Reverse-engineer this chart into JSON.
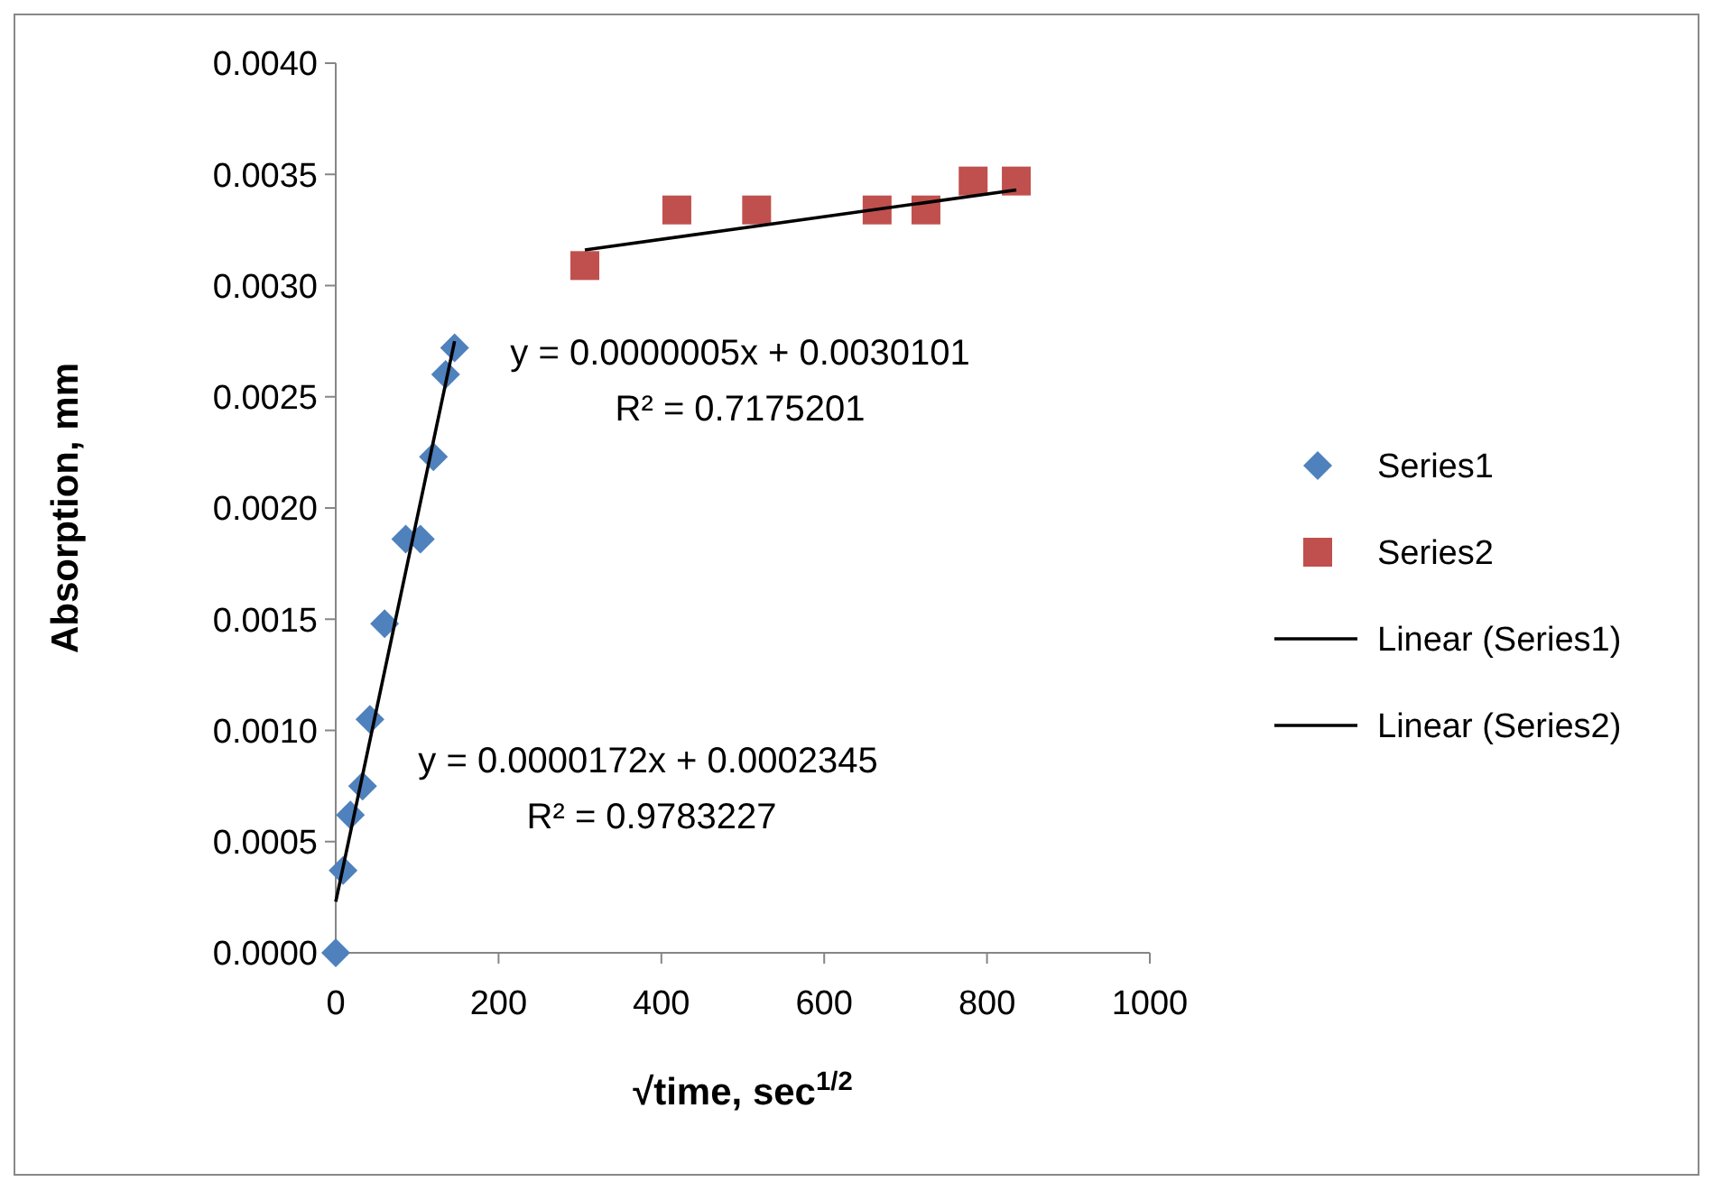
{
  "chart_data": {
    "type": "scatter",
    "xlabel": "√time, sec$^{1/2}$",
    "ylabel": "Absorption, mm",
    "xlim": [
      0,
      1000
    ],
    "xticks": [
      0,
      200,
      400,
      600,
      800,
      1000
    ],
    "ylim": [
      0,
      0.004
    ],
    "yticks": [
      {
        "value": 0,
        "label": "0.0000"
      },
      {
        "value": 0.0005,
        "label": "0.0005"
      },
      {
        "value": 0.001,
        "label": "0.0010"
      },
      {
        "value": 0.0015,
        "label": "0.0015"
      },
      {
        "value": 0.002,
        "label": "0.0020"
      },
      {
        "value": 0.0025,
        "label": "0.0025"
      },
      {
        "value": 0.003,
        "label": "0.0030"
      },
      {
        "value": 0.0035,
        "label": "0.0035"
      },
      {
        "value": 0.004,
        "label": "0.0040"
      }
    ],
    "grid": false,
    "legend": "right",
    "series": [
      {
        "name": "Series1",
        "type": "scatter",
        "marker": "diamond",
        "color": "#4f81bd",
        "x": [
          0,
          9,
          18,
          33,
          42,
          60,
          86,
          104,
          120,
          135,
          146
        ],
        "values": [
          0,
          0.00037,
          0.00062,
          0.00075,
          0.00105,
          0.00148,
          0.00186,
          0.00186,
          0.00223,
          0.0026,
          0.00272
        ]
      },
      {
        "name": "Series2",
        "type": "scatter",
        "marker": "square",
        "color": "#c0504d",
        "x": [
          306,
          419,
          517,
          665,
          725,
          783,
          836
        ],
        "values": [
          0.00309,
          0.00334,
          0.00334,
          0.00334,
          0.00334,
          0.00347,
          0.00347
        ]
      },
      {
        "name": "Linear (Series1)",
        "type": "line",
        "marker": "none",
        "line_style": "solid",
        "color": "#000000",
        "x": [
          0,
          146
        ],
        "values": [
          0.00023,
          0.00275
        ]
      },
      {
        "name": "Linear (Series2)",
        "type": "line",
        "marker": "none",
        "line_style": "solid",
        "color": "#000000",
        "x": [
          306,
          836
        ],
        "values": [
          0.00316,
          0.00343
        ]
      }
    ],
    "annotations": [
      "y = 0.0000172x + 0.0002345",
      "R² = 0.9783227",
      "y = 0.0000005x + 0.0030101",
      "R² = 0.7175201"
    ]
  }
}
